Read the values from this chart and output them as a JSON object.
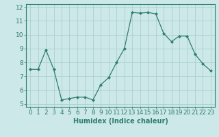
{
  "x": [
    0,
    1,
    2,
    3,
    4,
    5,
    6,
    7,
    8,
    9,
    10,
    11,
    12,
    13,
    14,
    15,
    16,
    17,
    18,
    19,
    20,
    21,
    22,
    23
  ],
  "y": [
    7.5,
    7.5,
    8.9,
    7.5,
    5.3,
    5.4,
    5.5,
    5.5,
    5.3,
    6.4,
    6.9,
    8.0,
    9.0,
    11.6,
    11.55,
    11.6,
    11.5,
    10.1,
    9.5,
    9.9,
    9.9,
    8.6,
    7.9,
    7.4
  ],
  "line_color": "#2e7d6e",
  "marker": "D",
  "marker_size": 2,
  "bg_color": "#cce8e8",
  "grid_color": "#aacfcf",
  "xlabel": "Humidex (Indice chaleur)",
  "ylim": [
    4.8,
    12.2
  ],
  "xlim": [
    -0.5,
    23.5
  ],
  "yticks": [
    5,
    6,
    7,
    8,
    9,
    10,
    11,
    12
  ],
  "xticks": [
    0,
    1,
    2,
    3,
    4,
    5,
    6,
    7,
    8,
    9,
    10,
    11,
    12,
    13,
    14,
    15,
    16,
    17,
    18,
    19,
    20,
    21,
    22,
    23
  ],
  "tick_color": "#2e7d6e",
  "label_color": "#2e7d6e",
  "font_size_label": 7,
  "font_size_tick": 6.5
}
